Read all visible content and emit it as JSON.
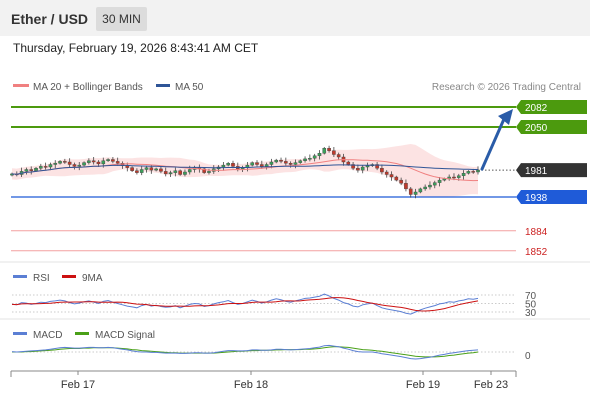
{
  "header": {
    "title": "Ether / USD",
    "timeframe": "30 MIN",
    "datetime": "Thursday, February 19, 2026 8:43:41 AM CET"
  },
  "legend": {
    "ma20": "MA 20 + Bollinger Bands",
    "ma50": "MA 50",
    "copyright": "Research © 2026 Trading Central"
  },
  "colors": {
    "ma20": "#f08080",
    "ma50": "#2f5597",
    "resistance": "#4c9a0e",
    "pivot": "#1f5bd8",
    "support": "#cc2222",
    "last_price": "#333333",
    "arrow": "#2a5ca8",
    "rsi": "#5b7fd4",
    "rsi_ma": "#cc1111",
    "macd": "#5b7fd4",
    "macd_signal": "#4aa018"
  },
  "chart_data": {
    "type": "candlestick",
    "x_ticks": [
      "Feb 17",
      "Feb 18",
      "Feb 19",
      "Feb 23"
    ],
    "price_levels": [
      {
        "label": "2082",
        "kind": "resistance"
      },
      {
        "label": "2050",
        "kind": "resistance"
      },
      {
        "label": "1981",
        "kind": "last"
      },
      {
        "label": "1938",
        "kind": "pivot"
      },
      {
        "label": "1884",
        "kind": "support"
      },
      {
        "label": "1852",
        "kind": "support"
      }
    ],
    "y_range": [
      1820,
      2105
    ],
    "close_series": [
      1975,
      1974,
      1979,
      1982,
      1980,
      1984,
      1987,
      1986,
      1990,
      1992,
      1995,
      1994,
      1990,
      1987,
      1989,
      1993,
      1996,
      1994,
      1991,
      1996,
      1998,
      1995,
      1992,
      1988,
      1985,
      1980,
      1977,
      1982,
      1985,
      1981,
      1983,
      1979,
      1975,
      1977,
      1980,
      1974,
      1978,
      1982,
      1985,
      1983,
      1977,
      1979,
      1983,
      1986,
      1989,
      1992,
      1987,
      1983,
      1985,
      1989,
      1993,
      1990,
      1987,
      1990,
      1994,
      1997,
      1995,
      1992,
      1990,
      1993,
      1996,
      1999,
      2000,
      2004,
      2008,
      2016,
      2012,
      2006,
      2002,
      1994,
      1990,
      1984,
      1981,
      1986,
      1988,
      1990,
      1984,
      1978,
      1974,
      1970,
      1965,
      1960,
      1951,
      1942,
      1946,
      1951,
      1954,
      1957,
      1961,
      1965,
      1967,
      1970,
      1969,
      1972,
      1976,
      1979,
      1978,
      1981
    ],
    "rsi": {
      "levels": [
        "70",
        "50",
        "30"
      ],
      "values": [
        48,
        47,
        52,
        51,
        48,
        50,
        53,
        52,
        55,
        56,
        58,
        56,
        52,
        49,
        51,
        54,
        56,
        53,
        50,
        55,
        57,
        53,
        50,
        47,
        44,
        42,
        40,
        45,
        48,
        44,
        46,
        43,
        41,
        42,
        45,
        40,
        44,
        48,
        50,
        49,
        43,
        45,
        49,
        52,
        54,
        57,
        52,
        48,
        50,
        54,
        58,
        55,
        51,
        54,
        58,
        61,
        59,
        55,
        53,
        56,
        59,
        62,
        63,
        65,
        67,
        72,
        68,
        62,
        58,
        52,
        49,
        44,
        42,
        47,
        49,
        51,
        45,
        40,
        37,
        35,
        33,
        31,
        27,
        25,
        30,
        35,
        39,
        42,
        45,
        49,
        51,
        54,
        53,
        56,
        58,
        61,
        60,
        62
      ]
    },
    "macd": {
      "level": "0",
      "macd": [
        1,
        0,
        1,
        2,
        3,
        4,
        5,
        6,
        8,
        10,
        12,
        13,
        12,
        11,
        11,
        12,
        13,
        13,
        12,
        12,
        13,
        12,
        10,
        8,
        6,
        3,
        1,
        0,
        0,
        -1,
        -1,
        -2,
        -3,
        -3,
        -3,
        -4,
        -4,
        -3,
        -2,
        -2,
        -3,
        -3,
        -2,
        0,
        2,
        4,
        4,
        3,
        3,
        4,
        6,
        6,
        5,
        5,
        6,
        8,
        8,
        7,
        6,
        7,
        8,
        9,
        10,
        12,
        14,
        18,
        19,
        17,
        15,
        11,
        8,
        4,
        1,
        0,
        0,
        0,
        -2,
        -5,
        -7,
        -9,
        -11,
        -13,
        -16,
        -19,
        -20,
        -19,
        -17,
        -15,
        -12,
        -9,
        -7,
        -4,
        -2,
        0,
        2,
        4,
        5,
        6
      ],
      "signal": [
        0,
        0,
        0,
        1,
        1,
        2,
        3,
        4,
        5,
        6,
        8,
        9,
        10,
        10,
        10,
        11,
        11,
        12,
        12,
        12,
        12,
        12,
        11,
        10,
        9,
        7,
        6,
        4,
        3,
        2,
        1,
        0,
        -1,
        -2,
        -2,
        -3,
        -3,
        -3,
        -3,
        -3,
        -3,
        -3,
        -3,
        -2,
        -1,
        0,
        1,
        2,
        2,
        3,
        4,
        4,
        5,
        5,
        5,
        6,
        6,
        7,
        7,
        7,
        7,
        8,
        8,
        9,
        10,
        12,
        14,
        15,
        15,
        14,
        13,
        11,
        9,
        7,
        6,
        5,
        3,
        2,
        0,
        -2,
        -4,
        -6,
        -8,
        -10,
        -12,
        -13,
        -14,
        -14,
        -14,
        -13,
        -12,
        -10,
        -9,
        -7,
        -5,
        -3,
        -2,
        0
      ]
    }
  },
  "indicators": {
    "rsi_label": "RSI",
    "rsi_ma_label": "9MA",
    "macd_label": "MACD",
    "macd_signal_label": "MACD Signal"
  }
}
